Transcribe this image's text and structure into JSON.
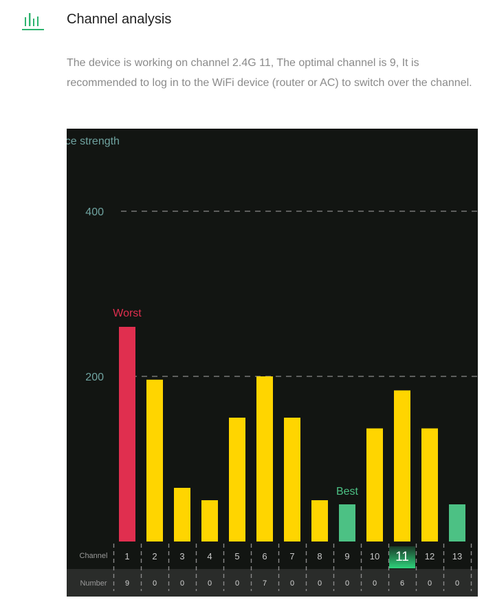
{
  "header": {
    "title": "Channel analysis",
    "icon": "signal-bars-icon"
  },
  "description": "The device is working on channel 2.4G 11, The optimal channel is 9, It is recommended to log in to the WiFi device (router or AC) to switch over the channel.",
  "chart_data": {
    "type": "bar",
    "ylabel": "Interference strength",
    "ylabel_visible": "ence strength",
    "y_ticks": [
      200,
      400
    ],
    "ylim": [
      0,
      400
    ],
    "categories": [
      "1",
      "2",
      "3",
      "4",
      "5",
      "6",
      "7",
      "8",
      "9",
      "10",
      "11",
      "12",
      "13"
    ],
    "values": [
      260,
      196,
      65,
      50,
      150,
      200,
      150,
      50,
      45,
      137,
      183,
      137,
      45
    ],
    "numbers": [
      "9",
      "0",
      "0",
      "0",
      "0",
      "7",
      "0",
      "0",
      "0",
      "0",
      "6",
      "0",
      "0"
    ],
    "row_labels": {
      "channel": "Channel",
      "number": "Number"
    },
    "worst": {
      "index": 0,
      "label": "Worst"
    },
    "best": {
      "index": 8,
      "label": "Best"
    },
    "current_index": 10,
    "colors": {
      "background": "#121512",
      "worst": "#e02f4f",
      "best": "#4cc184",
      "normal": "#ffd500",
      "grid": "#8a8a8a",
      "axis_text": "#6fa3a0"
    }
  }
}
